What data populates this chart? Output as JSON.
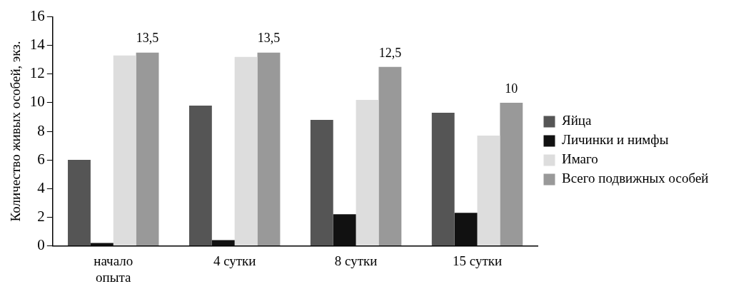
{
  "chart_data": {
    "type": "bar",
    "ylabel": "Количество живых особей, экз.",
    "categories": [
      "начало опыта",
      "4 сутки",
      "8 сутки",
      "15 сутки"
    ],
    "series": [
      {
        "name": "Яйца",
        "color": "#555555",
        "values": [
          6,
          9.8,
          8.8,
          9.3
        ]
      },
      {
        "name": "Личинки и нимфы",
        "color": "#111111",
        "values": [
          0.2,
          0.4,
          2.2,
          2.3
        ]
      },
      {
        "name": "Имаго",
        "color": "#dddddd",
        "values": [
          13.3,
          13.2,
          10.2,
          7.7
        ]
      },
      {
        "name": "Всего подвижных особей",
        "color": "#999999",
        "values": [
          13.5,
          13.5,
          12.5,
          10
        ],
        "value_labels": [
          "13,5",
          "13,5",
          "12,5",
          "10"
        ]
      }
    ],
    "ylim": [
      0,
      16
    ],
    "yticks": [
      0,
      2,
      4,
      6,
      8,
      10,
      12,
      14,
      16
    ],
    "grid": false,
    "legend": "right"
  }
}
